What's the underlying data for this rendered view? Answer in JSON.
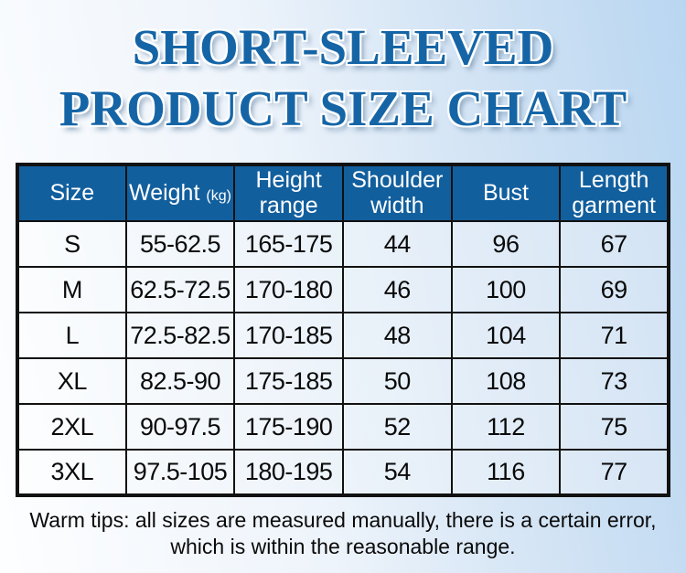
{
  "title": {
    "line1": "SHORT-SLEEVED",
    "line2": "PRODUCT SIZE CHART"
  },
  "table": {
    "headers": [
      {
        "text": "Size"
      },
      {
        "text": "Weight",
        "unit": "(kg)"
      },
      {
        "text": "Height range"
      },
      {
        "text": "Shoulder width"
      },
      {
        "text": "Bust"
      },
      {
        "text": "Length garment"
      }
    ],
    "rows": [
      [
        "S",
        "55-62.5",
        "165-175",
        "44",
        "96",
        "67"
      ],
      [
        "M",
        "62.5-72.5",
        "170-180",
        "46",
        "100",
        "69"
      ],
      [
        "L",
        "72.5-82.5",
        "170-185",
        "48",
        "104",
        "71"
      ],
      [
        "XL",
        "82.5-90",
        "175-185",
        "50",
        "108",
        "73"
      ],
      [
        "2XL",
        "90-97.5",
        "175-190",
        "52",
        "112",
        "75"
      ],
      [
        "3XL",
        "97.5-105",
        "180-195",
        "54",
        "116",
        "77"
      ]
    ]
  },
  "footer": {
    "line1": "Warm tips: all sizes are measured manually, there is a certain error,",
    "line2": "which is within the reasonable range."
  },
  "colors": {
    "header-blue": "#125f9e",
    "title-blue": "#1565a6",
    "border-black": "#111111",
    "text-black": "#0a0a0a"
  }
}
